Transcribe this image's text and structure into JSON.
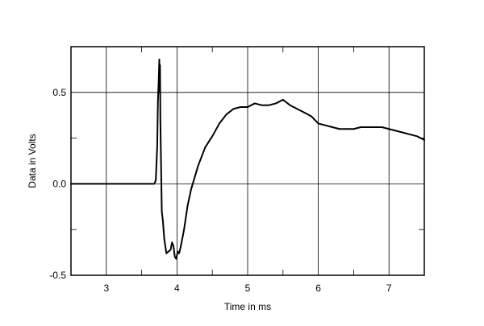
{
  "chart_data": {
    "type": "line",
    "xlabel": "Time in ms",
    "ylabel": "Data in Volts",
    "xlim": [
      2.5,
      7.5
    ],
    "ylim": [
      -0.5,
      0.75
    ],
    "x_ticks": [
      3,
      4,
      5,
      6,
      7
    ],
    "x_tick_labels": [
      "3",
      "4",
      "5",
      "6",
      "7"
    ],
    "x_minor_ticks": [
      2.5,
      3.5,
      4.5,
      5.5,
      6.5,
      7.5
    ],
    "y_ticks": [
      -0.5,
      0.0,
      0.5
    ],
    "y_tick_labels": [
      "-0.5",
      "0.0",
      "0.5"
    ],
    "y_minor_ticks": [
      -0.25,
      0.25,
      0.75
    ],
    "grid": true,
    "line_color": "#000000",
    "grid_color": "#000000",
    "series": [
      {
        "x": [
          2.5,
          3.0,
          3.5,
          3.68,
          3.7,
          3.72,
          3.73,
          3.74,
          3.75,
          3.755,
          3.76,
          3.765,
          3.775,
          3.785,
          3.8,
          3.82,
          3.85,
          3.88,
          3.91,
          3.93,
          3.95,
          3.97,
          3.99,
          4.01,
          4.03,
          4.05,
          4.1,
          4.15,
          4.2,
          4.3,
          4.4,
          4.5,
          4.6,
          4.7,
          4.8,
          4.9,
          5.0,
          5.1,
          5.2,
          5.3,
          5.4,
          5.5,
          5.6,
          5.7,
          5.8,
          5.9,
          6.0,
          6.1,
          6.2,
          6.3,
          6.4,
          6.5,
          6.6,
          6.7,
          6.8,
          6.9,
          7.0,
          7.1,
          7.2,
          7.3,
          7.4,
          7.5
        ],
        "y": [
          0.0,
          0.0,
          0.0,
          0.0,
          0.02,
          0.2,
          0.45,
          0.55,
          0.68,
          0.5,
          0.65,
          0.35,
          0.1,
          -0.15,
          -0.2,
          -0.3,
          -0.38,
          -0.37,
          -0.36,
          -0.32,
          -0.34,
          -0.4,
          -0.41,
          -0.37,
          -0.38,
          -0.35,
          -0.25,
          -0.12,
          -0.03,
          0.1,
          0.2,
          0.26,
          0.33,
          0.38,
          0.41,
          0.42,
          0.42,
          0.44,
          0.43,
          0.43,
          0.44,
          0.46,
          0.43,
          0.41,
          0.39,
          0.37,
          0.33,
          0.32,
          0.31,
          0.3,
          0.3,
          0.3,
          0.31,
          0.31,
          0.31,
          0.31,
          0.3,
          0.29,
          0.28,
          0.27,
          0.26,
          0.24
        ]
      }
    ]
  }
}
